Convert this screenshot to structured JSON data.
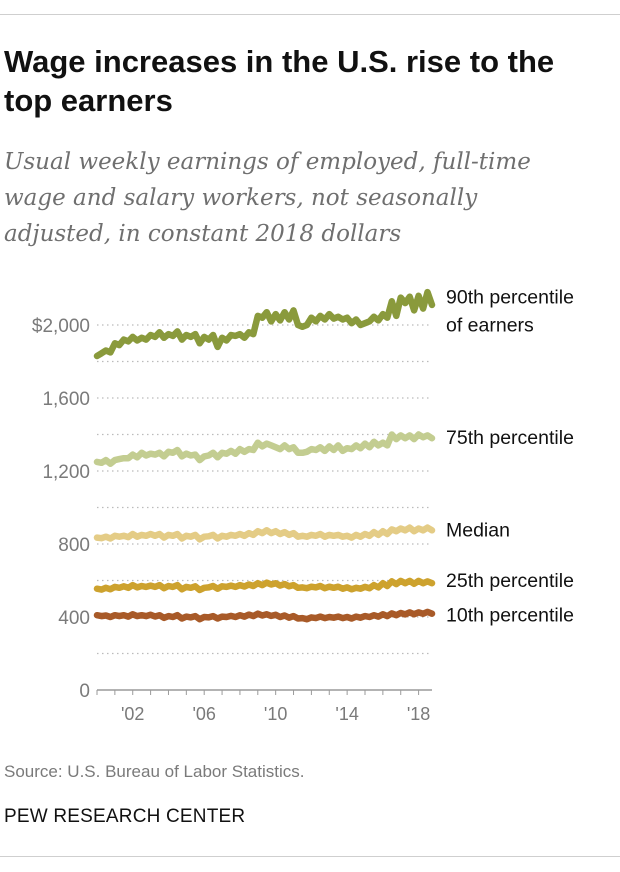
{
  "title": "Wage increases in the U.S. rise to the top earners",
  "subtitle": "Usual weekly earnings of employed, full-time wage and salary workers, not seasonally adjusted, in constant 2018 dollars",
  "source": "Source: U.S. Bureau of Labor Statistics.",
  "brand": "PEW RESEARCH CENTER",
  "colors": {
    "p90": "#8a9a3c",
    "p75": "#c3cd91",
    "median": "#e4cc86",
    "p25": "#cda22e",
    "p10": "#a85a28",
    "grid": "#bbbbbb",
    "axis_text": "#7a7a7a"
  },
  "chart_data": {
    "type": "line",
    "x_start": 2000.0,
    "x_step": 0.25,
    "xlim": [
      2000,
      2018.75
    ],
    "ylim": [
      0,
      2000
    ],
    "y_ticks": [
      0,
      400,
      800,
      1200,
      1600,
      2000
    ],
    "y_tick_labels": [
      "0",
      "400",
      "800",
      "1,200",
      "1,600",
      "$2,000"
    ],
    "x_ticks": [
      2002,
      2006,
      2010,
      2014,
      2018
    ],
    "x_tick_labels": [
      "'02",
      "'06",
      "'10",
      "'14",
      "'18"
    ],
    "grid": true,
    "series": [
      {
        "name": "90th percentile of earners",
        "label_lines": [
          "90th percentile",
          "of earners"
        ],
        "color_key": "p90",
        "values": [
          1830,
          1845,
          1860,
          1850,
          1900,
          1890,
          1920,
          1910,
          1935,
          1915,
          1930,
          1920,
          1945,
          1935,
          1960,
          1930,
          1950,
          1940,
          1965,
          1920,
          1945,
          1935,
          1950,
          1900,
          1935,
          1920,
          1945,
          1880,
          1930,
          1915,
          1945,
          1940,
          1950,
          1930,
          1960,
          1950,
          2050,
          2040,
          2070,
          2020,
          2060,
          2025,
          2070,
          2030,
          2080,
          2000,
          1990,
          2000,
          2040,
          2020,
          2050,
          2030,
          2060,
          2035,
          2045,
          2030,
          2040,
          2010,
          2030,
          2000,
          2010,
          2020,
          2045,
          2025,
          2060,
          2040,
          2130,
          2050,
          2150,
          2120,
          2155,
          2080,
          2160,
          2090,
          2180,
          2110
        ]
      },
      {
        "name": "75th percentile",
        "label_lines": [
          "75th percentile"
        ],
        "color_key": "p75",
        "values": [
          1250,
          1245,
          1260,
          1240,
          1260,
          1265,
          1270,
          1270,
          1290,
          1275,
          1300,
          1285,
          1295,
          1290,
          1300,
          1280,
          1305,
          1300,
          1315,
          1280,
          1295,
          1285,
          1290,
          1260,
          1280,
          1285,
          1300,
          1275,
          1300,
          1295,
          1310,
          1295,
          1320,
          1305,
          1320,
          1315,
          1355,
          1335,
          1350,
          1340,
          1330,
          1320,
          1340,
          1320,
          1330,
          1300,
          1300,
          1305,
          1320,
          1315,
          1330,
          1310,
          1335,
          1315,
          1340,
          1310,
          1325,
          1320,
          1340,
          1325,
          1350,
          1330,
          1360,
          1340,
          1355,
          1340,
          1400,
          1375,
          1395,
          1380,
          1395,
          1375,
          1400,
          1385,
          1395,
          1380
        ]
      },
      {
        "name": "Median",
        "label_lines": [
          "Median"
        ],
        "color_key": "median",
        "values": [
          835,
          832,
          840,
          830,
          845,
          840,
          845,
          838,
          855,
          840,
          850,
          845,
          855,
          845,
          855,
          835,
          850,
          845,
          855,
          830,
          845,
          840,
          850,
          825,
          840,
          842,
          850,
          830,
          845,
          840,
          850,
          845,
          855,
          845,
          860,
          850,
          870,
          860,
          875,
          860,
          870,
          855,
          865,
          850,
          860,
          840,
          845,
          840,
          850,
          845,
          855,
          840,
          850,
          845,
          850,
          840,
          845,
          835,
          850,
          840,
          855,
          845,
          865,
          850,
          870,
          855,
          880,
          870,
          885,
          875,
          890,
          870,
          885,
          875,
          890,
          875
        ]
      },
      {
        "name": "25th percentile",
        "label_lines": [
          "25th percentile"
        ],
        "color_key": "p25",
        "values": [
          555,
          550,
          560,
          552,
          565,
          560,
          568,
          560,
          575,
          562,
          570,
          565,
          572,
          565,
          575,
          558,
          570,
          565,
          575,
          552,
          565,
          560,
          568,
          548,
          560,
          562,
          570,
          555,
          568,
          565,
          572,
          565,
          575,
          567,
          578,
          570,
          585,
          575,
          588,
          578,
          585,
          572,
          580,
          568,
          575,
          560,
          562,
          558,
          566,
          562,
          570,
          558,
          566,
          560,
          566,
          555,
          562,
          552,
          560,
          555,
          565,
          558,
          575,
          562,
          585,
          570,
          595,
          580,
          598,
          585,
          598,
          582,
          598,
          585,
          595,
          585
        ]
      },
      {
        "name": "10th percentile",
        "label_lines": [
          "10th percentile"
        ],
        "color_key": "p10",
        "values": [
          410,
          405,
          408,
          400,
          410,
          405,
          410,
          402,
          415,
          405,
          410,
          405,
          412,
          403,
          410,
          395,
          405,
          400,
          410,
          392,
          402,
          398,
          405,
          388,
          400,
          398,
          405,
          392,
          402,
          400,
          406,
          400,
          410,
          402,
          413,
          405,
          418,
          408,
          415,
          406,
          412,
          400,
          408,
          396,
          405,
          392,
          394,
          388,
          398,
          394,
          402,
          394,
          400,
          396,
          402,
          394,
          400,
          392,
          402,
          396,
          405,
          400,
          410,
          402,
          415,
          405,
          420,
          410,
          422,
          414,
          425,
          415,
          425,
          418,
          428,
          418
        ]
      }
    ]
  }
}
